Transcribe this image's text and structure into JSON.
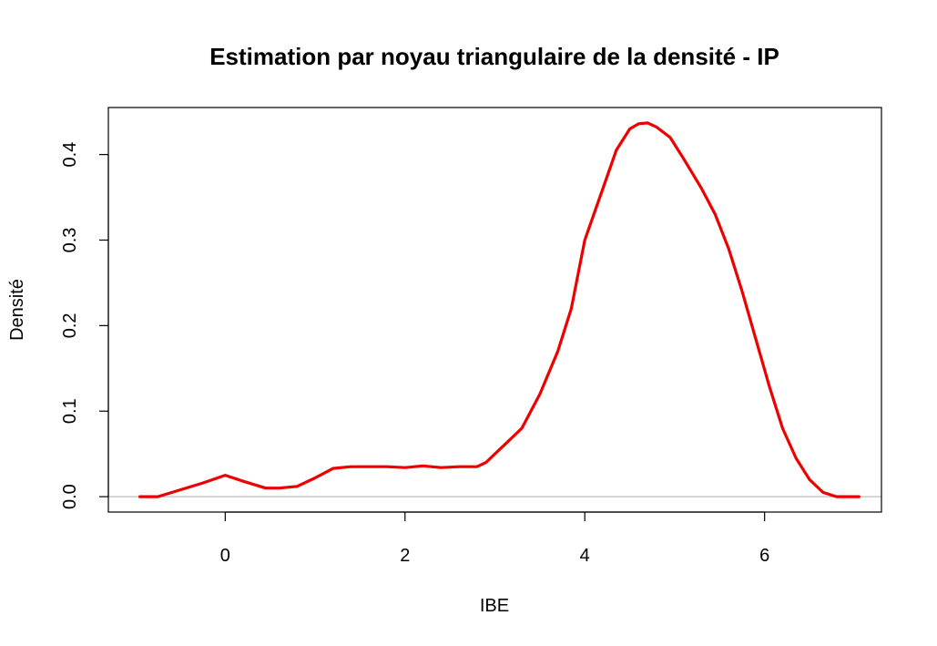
{
  "chart_data": {
    "type": "line",
    "title": "Estimation par noyau triangulaire de la densité - IP",
    "xlabel": "IBE",
    "ylabel": "Densité",
    "xlim": [
      -1.3,
      7.3
    ],
    "ylim": [
      -0.018,
      0.455
    ],
    "x_ticks": [
      0,
      2,
      4,
      6
    ],
    "y_ticks": [
      0.0,
      0.1,
      0.2,
      0.3,
      0.4
    ],
    "x_tick_labels": [
      "0",
      "2",
      "4",
      "6"
    ],
    "y_tick_labels": [
      "0.0",
      "0.1",
      "0.2",
      "0.3",
      "0.4"
    ],
    "baseline": 0,
    "baseline_color": "#bebebe",
    "grid": false,
    "legend": "none",
    "series": [
      {
        "color": "#ee0000",
        "x": [
          -0.95,
          -0.75,
          -0.5,
          -0.25,
          0.0,
          0.2,
          0.45,
          0.6,
          0.8,
          1.0,
          1.2,
          1.4,
          1.6,
          1.8,
          2.0,
          2.2,
          2.4,
          2.6,
          2.8,
          2.9,
          3.0,
          3.1,
          3.3,
          3.5,
          3.7,
          3.85,
          4.0,
          4.2,
          4.35,
          4.5,
          4.6,
          4.7,
          4.8,
          4.95,
          5.1,
          5.3,
          5.45,
          5.6,
          5.75,
          5.9,
          6.05,
          6.2,
          6.35,
          6.5,
          6.65,
          6.8,
          6.95,
          7.05
        ],
        "y": [
          0.0,
          0.0,
          0.008,
          0.016,
          0.025,
          0.018,
          0.01,
          0.01,
          0.012,
          0.022,
          0.033,
          0.035,
          0.035,
          0.035,
          0.034,
          0.036,
          0.034,
          0.035,
          0.035,
          0.04,
          0.05,
          0.06,
          0.08,
          0.12,
          0.17,
          0.22,
          0.3,
          0.36,
          0.405,
          0.43,
          0.436,
          0.437,
          0.432,
          0.42,
          0.395,
          0.36,
          0.33,
          0.29,
          0.24,
          0.185,
          0.13,
          0.08,
          0.045,
          0.02,
          0.005,
          0.0,
          0.0,
          0.0
        ]
      }
    ]
  }
}
